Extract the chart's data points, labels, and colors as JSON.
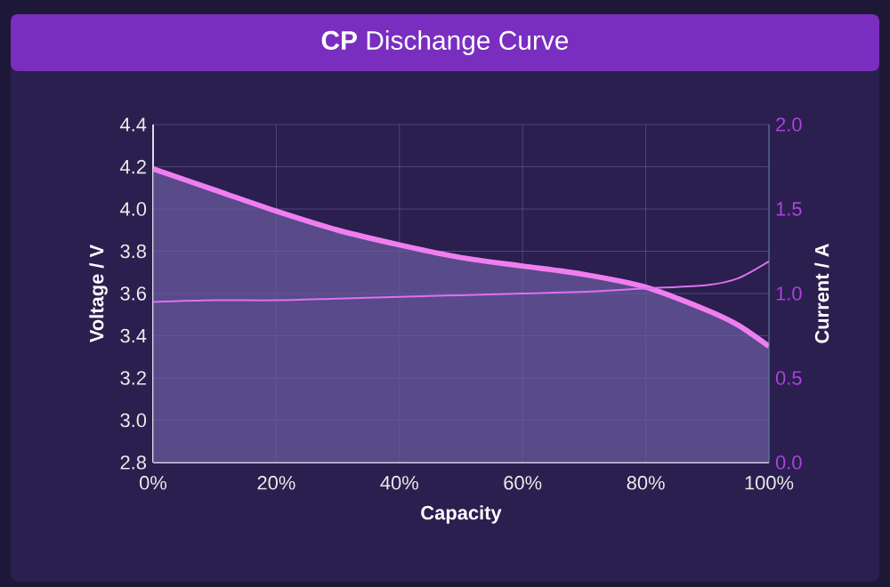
{
  "chart_data": {
    "type": "line",
    "title": "**CP** Dischange Curve",
    "xlabel": "Capacity",
    "ylabel": "Voltage / V",
    "y2label": "Current / A",
    "x": [
      0,
      10,
      20,
      30,
      40,
      50,
      60,
      70,
      80,
      90,
      95,
      100
    ],
    "series": [
      {
        "type": "area",
        "color": "#f07ef0",
        "axis": "y",
        "values": [
          4.19,
          4.09,
          3.99,
          3.9,
          3.83,
          3.77,
          3.73,
          3.69,
          3.63,
          3.52,
          3.45,
          3.35
        ]
      },
      {
        "color": "#e070f0",
        "axis": "y2",
        "values": [
          0.95,
          0.96,
          0.96,
          0.97,
          0.98,
          0.99,
          1.0,
          1.01,
          1.03,
          1.05,
          1.09,
          1.19
        ]
      }
    ],
    "xlim": [
      0,
      100
    ],
    "xticks": [
      {
        "value": 0,
        "label": "0%"
      },
      {
        "value": 20,
        "label": "20%"
      },
      {
        "value": 40,
        "label": "40%"
      },
      {
        "value": 60,
        "label": "60%"
      },
      {
        "value": 80,
        "label": "80%"
      },
      {
        "value": 100,
        "label": "100%"
      }
    ],
    "ylim": [
      2.8,
      4.4
    ],
    "yticks": [
      {
        "value": 2.8,
        "label": "2.8"
      },
      {
        "value": 3.0,
        "label": "3.0"
      },
      {
        "value": 3.2,
        "label": "3.2"
      },
      {
        "value": 3.4,
        "label": "3.4"
      },
      {
        "value": 3.6,
        "label": "3.6"
      },
      {
        "value": 3.8,
        "label": "3.8"
      },
      {
        "value": 4.0,
        "label": "4.0"
      },
      {
        "value": 4.2,
        "label": "4.2"
      },
      {
        "value": 4.4,
        "label": "4.4"
      }
    ],
    "y2lim": [
      0,
      2
    ],
    "y2ticks": [
      {
        "value": 0,
        "label": "0.0"
      },
      {
        "value": 0.5,
        "label": "0.5"
      },
      {
        "value": 1.0,
        "label": "1.0"
      },
      {
        "value": 1.5,
        "label": "1.5"
      },
      {
        "value": 2.0,
        "label": "2.0"
      }
    ],
    "grid": true
  }
}
